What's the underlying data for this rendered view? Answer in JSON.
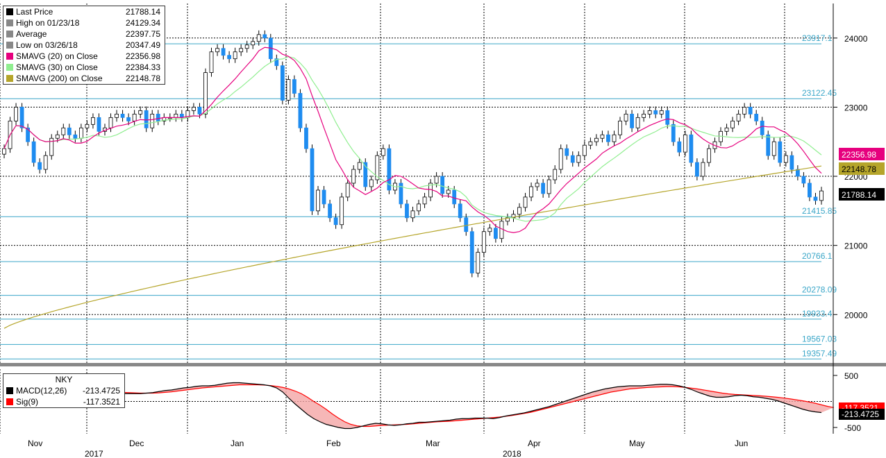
{
  "chart_data": [
    {
      "type": "candlestick",
      "title": "",
      "ylim": [
        19300,
        24500
      ],
      "yticks": [
        20000,
        21000,
        22000,
        23000,
        24000
      ],
      "grid": true,
      "legend_placement": "top-left",
      "legend": [
        {
          "label": "Last Price",
          "value": "21788.14",
          "color": "#000000"
        },
        {
          "label": "High on 01/23/18",
          "value": "24129.34",
          "color": "#888888"
        },
        {
          "label": "Average",
          "value": "22397.75",
          "color": "#888888"
        },
        {
          "label": "Low on 03/26/18",
          "value": "20347.49",
          "color": "#888888"
        },
        {
          "label": "SMAVG (20) on Close",
          "value": "22356.98",
          "color": "#e6007e"
        },
        {
          "label": "SMAVG (30) on Close",
          "value": "22384.33",
          "color": "#90ee90"
        },
        {
          "label": "SMAVG (200) on Close",
          "value": "22148.78",
          "color": "#b5a52a"
        }
      ],
      "horizontal_levels": [
        "23917.1",
        "23122.45",
        "21415.85",
        "20766.1",
        "20278.09",
        "19933.4",
        "19567.03",
        "19357.49"
      ],
      "price_labels": [
        {
          "text": "22356.98",
          "color": "#e6007e"
        },
        {
          "text": "22148.78",
          "color": "#b5a52a"
        },
        {
          "text": "21788.14",
          "color": "#000000"
        }
      ],
      "close": [
        22400,
        22800,
        23000,
        22700,
        22500,
        22200,
        22100,
        22300,
        22550,
        22600,
        22700,
        22600,
        22550,
        22700,
        22750,
        22850,
        22650,
        22700,
        22850,
        22900,
        22850,
        22800,
        22900,
        22950,
        22700,
        22900,
        22800,
        22850,
        22850,
        22900,
        22850,
        22950,
        23000,
        22900,
        23500,
        23800,
        23850,
        23750,
        23700,
        23800,
        23850,
        23900,
        23950,
        24050,
        24000,
        23700,
        23600,
        23100,
        23400,
        23200,
        22700,
        22400,
        21500,
        21800,
        21600,
        21400,
        21300,
        21700,
        21900,
        22100,
        22200,
        21850,
        21950,
        22300,
        22400,
        21800,
        21900,
        21600,
        21400,
        21500,
        21600,
        21700,
        21900,
        22000,
        21750,
        21800,
        21600,
        21400,
        21200,
        20600,
        20900,
        21200,
        21250,
        21100,
        21350,
        21400,
        21450,
        21550,
        21700,
        21850,
        21900,
        21750,
        21950,
        22100,
        22400,
        22300,
        22200,
        22300,
        22450,
        22500,
        22550,
        22600,
        22500,
        22600,
        22800,
        22900,
        22700,
        22850,
        22900,
        22950,
        22900,
        22950,
        22750,
        22500,
        22350,
        22600,
        22200,
        22000,
        22200,
        22400,
        22500,
        22650,
        22700,
        22800,
        22900,
        23000,
        22900,
        22800,
        22600,
        22300,
        22500,
        22200,
        22300,
        22100,
        22000,
        21900,
        21700,
        21650,
        21788.14
      ],
      "sma20_label": "SMAVG (20) on Close",
      "sma30_label": "SMAVG (30) on Close",
      "sma200_label": "SMAVG (200) on Close"
    },
    {
      "type": "line",
      "ylim": [
        -620,
        620
      ],
      "yticks": [
        500,
        -500
      ],
      "legend": [
        {
          "label": "MACD(12,26)",
          "value": "-213.4725",
          "color": "#000000"
        },
        {
          "label": "Sig(9)",
          "value": "-117.3521",
          "color": "#ff0000"
        }
      ],
      "legend_title": "NKY",
      "value_labels": [
        {
          "text": "-117.3521",
          "color": "#ff0000"
        },
        {
          "text": "-213.4725",
          "color": "#000000"
        }
      ],
      "macd": [
        420,
        380,
        330,
        290,
        270,
        260,
        250,
        250,
        240,
        230,
        220,
        210,
        200,
        190,
        180,
        170,
        170,
        160,
        160,
        150,
        150,
        150,
        150,
        160,
        170,
        190,
        210,
        220,
        240,
        260,
        270,
        290,
        300,
        300,
        310,
        330,
        350,
        360,
        360,
        350,
        340,
        330,
        320,
        300,
        260,
        180,
        60,
        -50,
        -150,
        -250,
        -330,
        -390,
        -440,
        -470,
        -500,
        -520,
        -520,
        -500,
        -470,
        -440,
        -420,
        -430,
        -450,
        -460,
        -450,
        -430,
        -420,
        -400,
        -400,
        -390,
        -380,
        -370,
        -360,
        -340,
        -330,
        -330,
        -320,
        -320,
        -320,
        -330,
        -310,
        -280,
        -260,
        -240,
        -220,
        -190,
        -160,
        -130,
        -100,
        -60,
        -20,
        20,
        60,
        100,
        140,
        180,
        210,
        240,
        260,
        280,
        290,
        300,
        300,
        300,
        310,
        320,
        330,
        330,
        320,
        300,
        270,
        230,
        180,
        140,
        100,
        80,
        80,
        90,
        110,
        120,
        110,
        90,
        80,
        60,
        40,
        10,
        -30,
        -70,
        -110,
        -150,
        -180,
        -200,
        -213.47
      ],
      "signal": [
        430,
        400,
        360,
        320,
        290,
        270,
        260,
        255,
        250,
        245,
        240,
        235,
        225,
        215,
        205,
        195,
        190,
        185,
        180,
        175,
        170,
        165,
        160,
        160,
        160,
        165,
        175,
        185,
        200,
        215,
        230,
        245,
        260,
        270,
        280,
        290,
        300,
        310,
        320,
        320,
        320,
        320,
        315,
        305,
        290,
        270,
        240,
        200,
        150,
        80,
        0,
        -70,
        -150,
        -240,
        -320,
        -390,
        -440,
        -470,
        -480,
        -480,
        -470,
        -460,
        -455,
        -450,
        -445,
        -440,
        -430,
        -420,
        -410,
        -400,
        -390,
        -385,
        -380,
        -370,
        -360,
        -350,
        -340,
        -330,
        -320,
        -310,
        -300,
        -285,
        -270,
        -250,
        -230,
        -210,
        -180,
        -150,
        -120,
        -90,
        -60,
        -30,
        0,
        30,
        60,
        90,
        120,
        150,
        180,
        200,
        220,
        240,
        250,
        260,
        270,
        275,
        280,
        285,
        285,
        280,
        270,
        255,
        240,
        220,
        200,
        180,
        160,
        145,
        135,
        128,
        122,
        115,
        108,
        100,
        90,
        78,
        64,
        48,
        30,
        12,
        -10,
        -35,
        -65,
        -95,
        -117.35
      ]
    }
  ],
  "x_axis": {
    "months": [
      "Nov",
      "Dec",
      "Jan",
      "Feb",
      "Mar",
      "Apr",
      "May",
      "Jun"
    ],
    "years": [
      "2017",
      "2018"
    ]
  }
}
